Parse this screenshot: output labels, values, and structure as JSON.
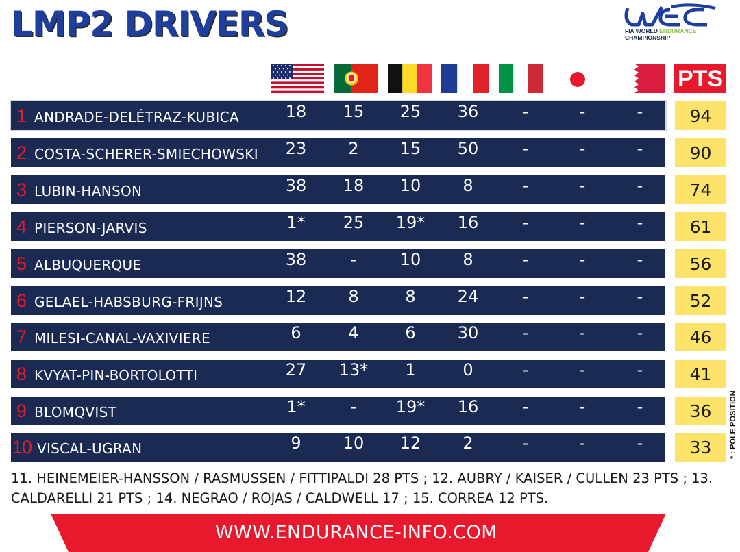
{
  "title": "LMP2 DRIVERS",
  "logo": {
    "mark": "WEC",
    "line1_a": "FIA WORLD ",
    "line1_b": "ENDURANCE",
    "line2": "CHAMPIONSHIP"
  },
  "flags": [
    "usa-flag",
    "portugal-flag",
    "belgium-flag",
    "france-flag",
    "italy-flag",
    "japan-flag",
    "bahrain-flag"
  ],
  "pts_header": "PTS",
  "rows": [
    {
      "pos": "1",
      "driver": "ANDRADE-DELÉTRAZ-KUBICA",
      "results": [
        "18",
        "15",
        "25",
        "36",
        "-",
        "-",
        "-"
      ],
      "pts": "94"
    },
    {
      "pos": "2",
      "driver": "COSTA-SCHERER-SMIECHOWSKI",
      "results": [
        "23",
        "2",
        "15",
        "50",
        "-",
        "-",
        "-"
      ],
      "pts": "90"
    },
    {
      "pos": "3",
      "driver": "LUBIN-HANSON",
      "results": [
        "38",
        "18",
        "10",
        "8",
        "-",
        "-",
        "-"
      ],
      "pts": "74"
    },
    {
      "pos": "4",
      "driver": "PIERSON-JARVIS",
      "results": [
        "1*",
        "25",
        "19*",
        "16",
        "-",
        "-",
        "-"
      ],
      "pts": "61"
    },
    {
      "pos": "5",
      "driver": "ALBUQUERQUE",
      "results": [
        "38",
        "-",
        "10",
        "8",
        "-",
        "-",
        "-"
      ],
      "pts": "56"
    },
    {
      "pos": "6",
      "driver": "GELAEL-HABSBURG-FRIJNS",
      "results": [
        "12",
        "8",
        "8",
        "24",
        "-",
        "-",
        "-"
      ],
      "pts": "52"
    },
    {
      "pos": "7",
      "driver": "MILESI-CANAL-VAXIVIERE",
      "results": [
        "6",
        "4",
        "6",
        "30",
        "-",
        "-",
        "-"
      ],
      "pts": "46"
    },
    {
      "pos": "8",
      "driver": "KVYAT-PIN-BORTOLOTTI",
      "results": [
        "27",
        "13*",
        "1",
        "0",
        "-",
        "-",
        "-"
      ],
      "pts": "41"
    },
    {
      "pos": "9",
      "driver": "BLOMQVIST",
      "results": [
        "1*",
        "-",
        "19*",
        "16",
        "-",
        "-",
        "-"
      ],
      "pts": "36"
    },
    {
      "pos": "10",
      "driver": "VISCAL-UGRAN",
      "results": [
        "9",
        "10",
        "12",
        "2",
        "-",
        "-",
        "-"
      ],
      "pts": "33"
    }
  ],
  "pole_note": "* : POLE POSITION",
  "footnote_line1": "11. HEINEMEIER-HANSSON / RASMUSSEN / FITTIPALDI 28 PTS ; 12. AUBRY / KAISER / CULLEN 23 PTS ; 13.",
  "footnote_line2": "CALDARELLI 21 PTS ; 14. NEGRAO / ROJAS / CALDWELL 17 ; 15. CORREA 12 PTS.",
  "banner": "WWW.ENDURANCE-INFO.COM",
  "colors": {
    "navy": "#1a2a52",
    "red": "#e8192c",
    "yellow": "#fde36a",
    "title_blue": "#1f3f9e"
  }
}
